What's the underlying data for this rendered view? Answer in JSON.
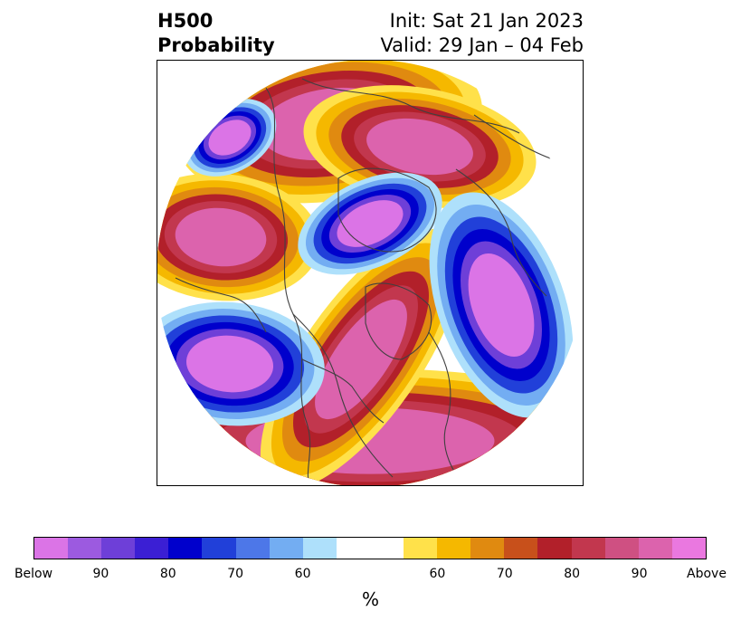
{
  "title": {
    "left_line1": "H500",
    "left_line2": "Probability",
    "right_line1": "Init: Sat 21 Jan 2023",
    "right_line2": "Valid: 29 Jan – 04 Feb"
  },
  "colorbar": {
    "colors": [
      "#db74e6",
      "#9c5ae0",
      "#6e3fd8",
      "#3b1fd4",
      "#0000cc",
      "#2140d9",
      "#4d77e8",
      "#73adf2",
      "#aee0fb",
      "#ffffff",
      "#ffe14a",
      "#f5b800",
      "#e08a10",
      "#c8501b",
      "#b2202a",
      "#c2374e",
      "#cf5082",
      "#dc63ad",
      "#ea78e0"
    ],
    "tick_labels": [
      "Below",
      "90",
      "80",
      "70",
      "60",
      "60",
      "70",
      "80",
      "90",
      "Above"
    ],
    "unit_label": "%"
  },
  "map": {
    "palette_below": [
      "#db74e6",
      "#6e3fd8",
      "#0000cc",
      "#2140d9",
      "#73adf2",
      "#aee0fb"
    ],
    "palette_above": [
      "#dc63ad",
      "#c2374e",
      "#b2202a",
      "#e08a10",
      "#f5b800",
      "#ffe14a"
    ],
    "coastline_color": "#404040"
  }
}
